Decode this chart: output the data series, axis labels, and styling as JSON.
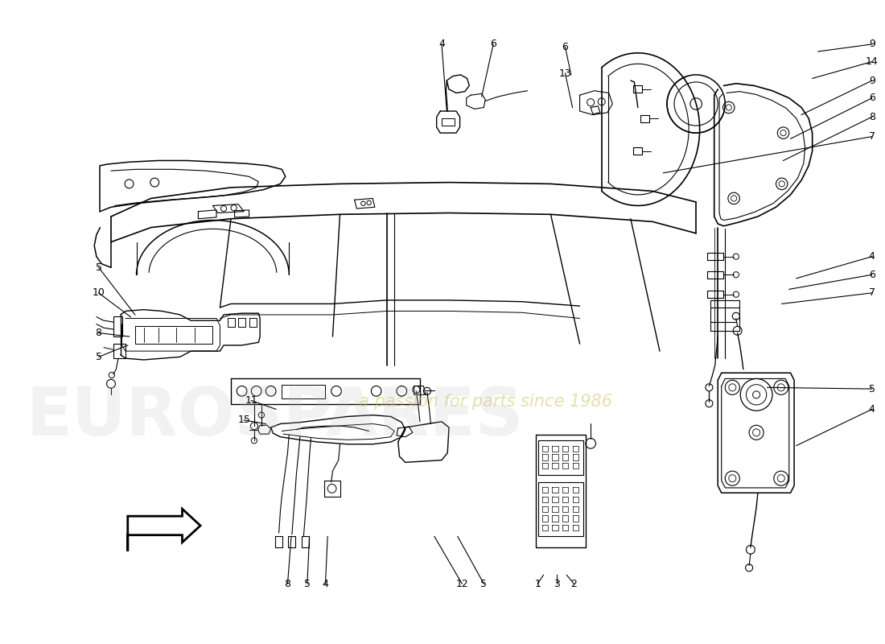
{
  "background_color": "#ffffff",
  "watermark_text": "a passion for parts since 1986",
  "watermark_color": "#c8b84a",
  "watermark_alpha": 0.45,
  "figsize": [
    11.0,
    8.0
  ],
  "dpi": 100,
  "line_color": "#000000",
  "line_width": 0.9,
  "leaders": [
    [
      "4",
      490,
      18,
      497,
      110
    ],
    [
      "6",
      561,
      18,
      545,
      90
    ],
    [
      "6",
      660,
      22,
      668,
      60
    ],
    [
      "13",
      660,
      58,
      670,
      105
    ],
    [
      "9",
      1082,
      18,
      1008,
      28
    ],
    [
      "14",
      1082,
      42,
      1000,
      65
    ],
    [
      "9",
      1082,
      68,
      985,
      115
    ],
    [
      "6",
      1082,
      92,
      970,
      148
    ],
    [
      "8",
      1082,
      118,
      960,
      178
    ],
    [
      "7",
      1082,
      145,
      795,
      195
    ],
    [
      "4",
      1082,
      310,
      978,
      340
    ],
    [
      "6",
      1082,
      335,
      968,
      355
    ],
    [
      "7",
      1082,
      360,
      958,
      375
    ],
    [
      "5",
      18,
      325,
      68,
      390
    ],
    [
      "10",
      18,
      360,
      62,
      393
    ],
    [
      "8",
      18,
      415,
      60,
      420
    ],
    [
      "5",
      18,
      448,
      58,
      432
    ],
    [
      "11",
      228,
      508,
      262,
      520
    ],
    [
      "15",
      218,
      535,
      248,
      540
    ],
    [
      "8",
      278,
      760,
      283,
      695
    ],
    [
      "5",
      305,
      760,
      308,
      695
    ],
    [
      "4",
      330,
      760,
      333,
      695
    ],
    [
      "12",
      518,
      760,
      480,
      695
    ],
    [
      "5",
      548,
      760,
      512,
      695
    ],
    [
      "1",
      622,
      760,
      630,
      748
    ],
    [
      "3",
      648,
      760,
      648,
      748
    ],
    [
      "2",
      672,
      760,
      662,
      748
    ],
    [
      "5",
      1082,
      492,
      938,
      490
    ],
    [
      "4",
      1082,
      520,
      978,
      570
    ]
  ]
}
